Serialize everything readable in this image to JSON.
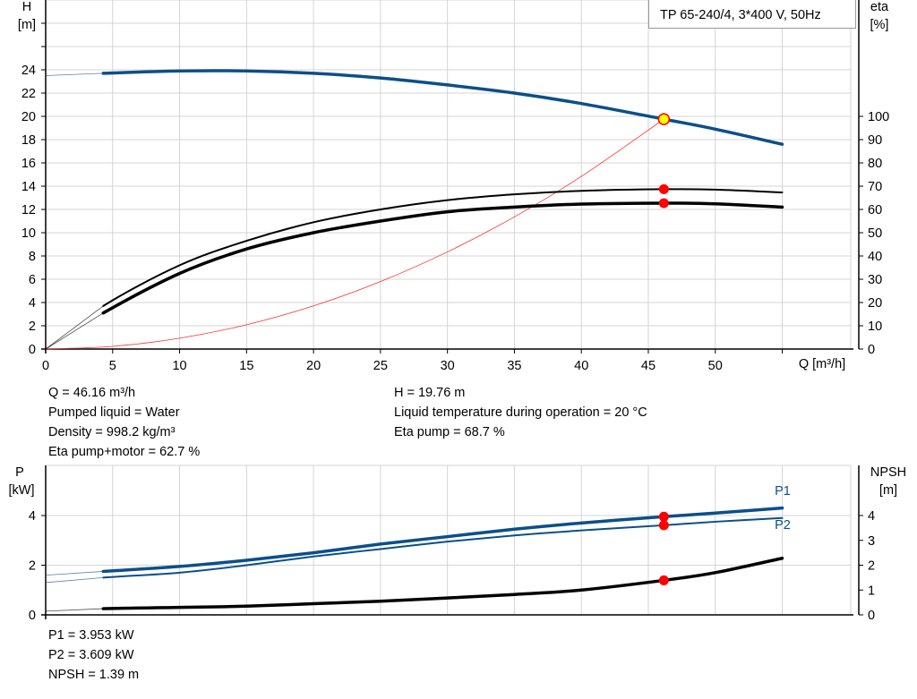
{
  "title": "TP 65-240/4, 3*400 V, 50Hz",
  "colors": {
    "head": "#0b4f8a",
    "power": "#0b4f8a",
    "eta": "#000000",
    "npsh": "#000000",
    "system": "#ff3030",
    "duty_point": "#ff0000",
    "duty_fill": "#ffff00",
    "grid": "#d4d4d4"
  },
  "top_info": {
    "left": [
      "Q = 46.16 m³/h",
      "Pumped liquid = Water",
      "Density = 998.2 kg/m³",
      "Eta pump+motor = 62.7 %"
    ],
    "right": [
      "H = 19.76 m",
      "Liquid temperature during operation = 20 °C",
      "Eta pump = 68.7 %"
    ]
  },
  "bottom_info": [
    "P1 = 3.953 kW",
    "P2 = 3.609 kW",
    "NPSH = 1.39 m"
  ],
  "chart_data": [
    {
      "type": "line",
      "xlabel": "Q [m³/h]",
      "ylabel_left": {
        "name": "H",
        "unit": "[m]"
      },
      "ylabel_right": {
        "name": "eta",
        "unit": "[%]"
      },
      "xlim": [
        0,
        60
      ],
      "ylim_left": [
        0,
        30
      ],
      "ylim_right": [
        0,
        115
      ],
      "x_ticks": [
        "0",
        "5",
        "10",
        "15",
        "20",
        "25",
        "30",
        "35",
        "40",
        "45",
        "50"
      ],
      "y_ticks_left": [
        "0",
        "2",
        "4",
        "6",
        "8",
        "10",
        "12",
        "14",
        "16",
        "18",
        "20",
        "22",
        "24"
      ],
      "y_ticks_right": [
        "0",
        "10",
        "20",
        "30",
        "40",
        "50",
        "60",
        "70",
        "80",
        "90",
        "100"
      ],
      "grid": true,
      "series": [
        {
          "key": "H",
          "axis": "left",
          "x": [
            0,
            4.3,
            10,
            15,
            20,
            25,
            30,
            35,
            40,
            46.16,
            50,
            55
          ],
          "y": [
            23.5,
            23.7,
            23.9,
            23.9,
            23.7,
            23.3,
            22.7,
            22.0,
            21.1,
            19.76,
            18.9,
            17.6
          ]
        },
        {
          "key": "eta_pump",
          "axis": "right",
          "x": [
            0,
            4.3,
            10,
            15,
            20,
            25,
            30,
            35,
            40,
            46.16,
            50,
            55
          ],
          "y": [
            0,
            18.5,
            36,
            46.5,
            54.5,
            60,
            64,
            66.5,
            68,
            68.7,
            68.5,
            67.3
          ]
        },
        {
          "key": "eta_pump_motor",
          "axis": "right",
          "x": [
            0,
            4.3,
            10,
            15,
            20,
            25,
            30,
            35,
            40,
            46.16,
            50,
            55
          ],
          "y": [
            0,
            15.5,
            32.5,
            43,
            50,
            55,
            59,
            61,
            62.3,
            62.7,
            62.4,
            61
          ]
        },
        {
          "key": "system",
          "axis": "left",
          "x": [
            0,
            5,
            10,
            15,
            20,
            25,
            30,
            35,
            40,
            46.16
          ],
          "y": [
            0,
            0.23,
            0.93,
            2.09,
            3.71,
            5.8,
            8.35,
            11.36,
            14.84,
            19.76
          ]
        }
      ],
      "duty_point": {
        "Q": 46.16,
        "H": 19.76,
        "eta_pump": 68.7,
        "eta_pump_motor": 62.7
      }
    },
    {
      "type": "line",
      "ylabel_left": {
        "name": "P",
        "unit": "[kW]"
      },
      "ylabel_right": {
        "name": "NPSH",
        "unit": "[m]"
      },
      "xlim": [
        0,
        60
      ],
      "ylim_left": [
        0,
        6
      ],
      "ylim_right": [
        0,
        6
      ],
      "y_ticks_left": [
        "0",
        "2",
        "4"
      ],
      "y_ticks_right": [
        "0",
        "1",
        "2",
        "3",
        "4"
      ],
      "grid": true,
      "series": [
        {
          "key": "P1",
          "name": "P1",
          "axis": "left",
          "x": [
            0,
            4.3,
            10,
            15,
            20,
            25,
            30,
            35,
            40,
            46.16,
            50,
            55
          ],
          "y": [
            1.6,
            1.75,
            1.95,
            2.2,
            2.5,
            2.85,
            3.15,
            3.45,
            3.7,
            3.953,
            4.1,
            4.3
          ]
        },
        {
          "key": "P2",
          "name": "P2",
          "axis": "left",
          "x": [
            0,
            4.3,
            10,
            15,
            20,
            25,
            30,
            35,
            40,
            46.16,
            50,
            55
          ],
          "y": [
            1.3,
            1.5,
            1.7,
            2.0,
            2.35,
            2.65,
            2.95,
            3.2,
            3.4,
            3.609,
            3.75,
            3.9
          ]
        },
        {
          "key": "NPSH",
          "axis": "right",
          "x": [
            0,
            4.3,
            10,
            15,
            20,
            25,
            30,
            35,
            40,
            46.16,
            50,
            55
          ],
          "y": [
            0.15,
            0.25,
            0.3,
            0.35,
            0.45,
            0.55,
            0.68,
            0.82,
            1.0,
            1.39,
            1.7,
            2.28
          ]
        }
      ],
      "duty_point": {
        "Q": 46.16,
        "P1": 3.953,
        "P2": 3.609,
        "NPSH": 1.39
      }
    }
  ]
}
